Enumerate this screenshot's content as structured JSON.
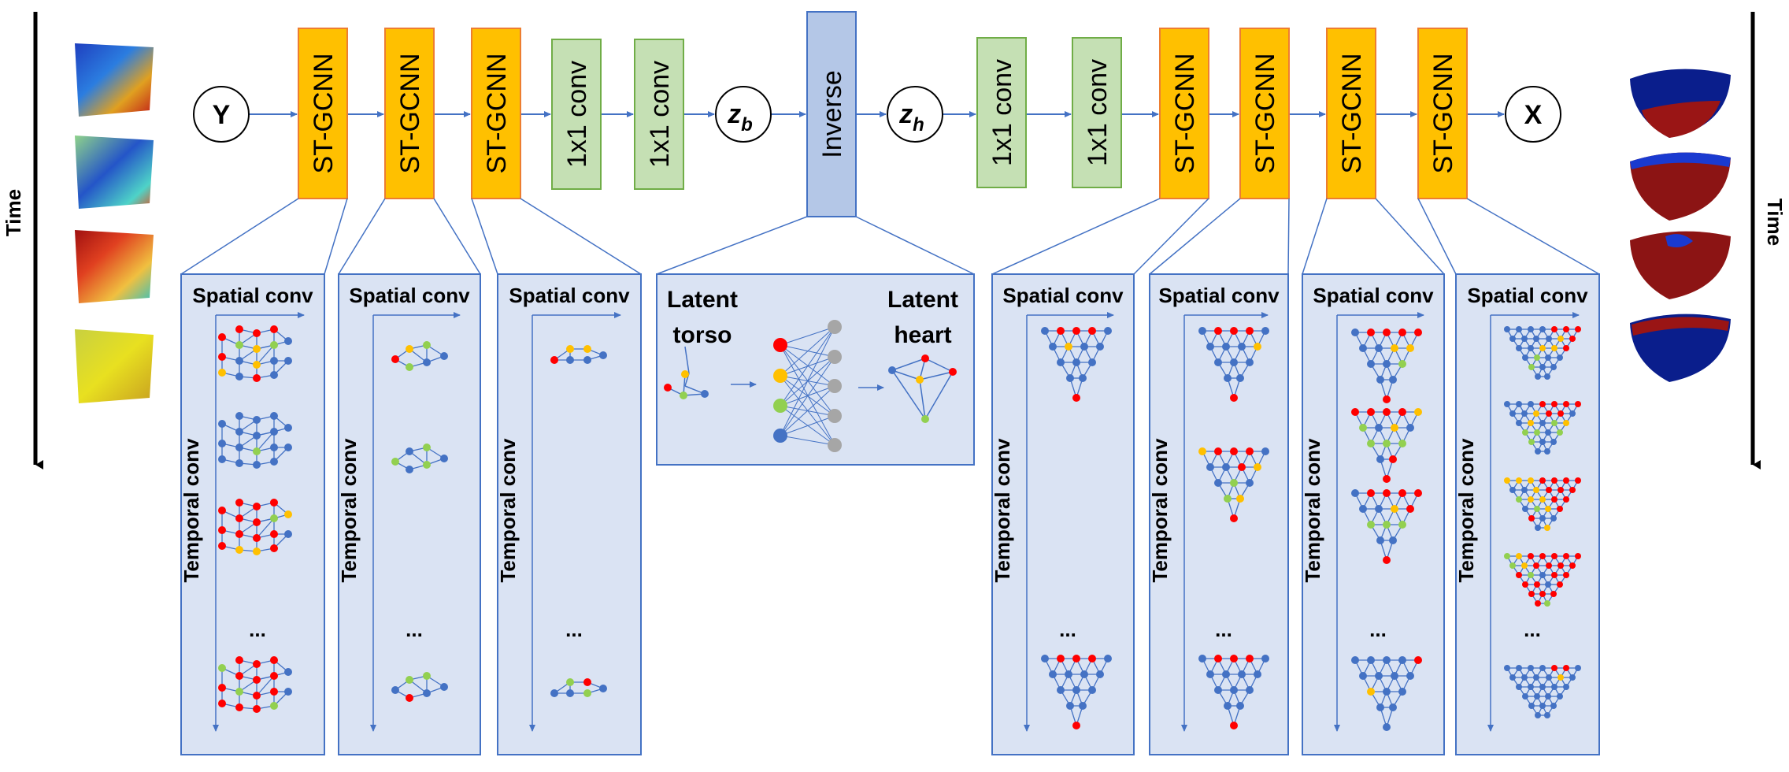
{
  "time_label_left": "Time",
  "time_label_right": "Time",
  "pipeline": {
    "input_node": "Y",
    "output_node": "X",
    "zb": {
      "main": "z",
      "sub": "b"
    },
    "zh": {
      "main": "z",
      "sub": "h"
    },
    "blocks": [
      {
        "label": "ST-GCNN",
        "kind": "stgcnn"
      },
      {
        "label": "ST-GCNN",
        "kind": "stgcnn"
      },
      {
        "label": "ST-GCNN",
        "kind": "stgcnn"
      },
      {
        "label": "1x1 conv",
        "kind": "conv"
      },
      {
        "label": "1x1 conv",
        "kind": "conv"
      },
      {
        "label": "Inverse",
        "kind": "inverse"
      },
      {
        "label": "1x1 conv",
        "kind": "conv"
      },
      {
        "label": "1x1 conv",
        "kind": "conv"
      },
      {
        "label": "ST-GCNN",
        "kind": "stgcnn"
      },
      {
        "label": "ST-GCNN",
        "kind": "stgcnn"
      },
      {
        "label": "ST-GCNN",
        "kind": "stgcnn"
      },
      {
        "label": "ST-GCNN",
        "kind": "stgcnn"
      }
    ]
  },
  "detail_panels": {
    "spatial_label": "Spatial conv",
    "temporal_label": "Temporal conv",
    "ellipsis": "..."
  },
  "inverse_panel": {
    "latent_torso": [
      "Latent",
      "torso"
    ],
    "latent_heart": [
      "Latent",
      "heart"
    ]
  },
  "colors": {
    "stgcnn_fill": "#FFC000",
    "stgcnn_stroke": "#ED7D31",
    "conv_fill": "#C5E0B4",
    "conv_stroke": "#70AD47",
    "inverse_fill": "#B4C7E7",
    "inverse_stroke": "#4472C4",
    "panel_fill": "#DAE3F3",
    "panel_stroke": "#4472C4",
    "arrow": "#4472C4",
    "node_blue": "#4472C4",
    "node_red": "#FF0000",
    "node_yellow": "#FFC000",
    "node_green": "#92D050",
    "node_gray": "#A6A6A6"
  }
}
